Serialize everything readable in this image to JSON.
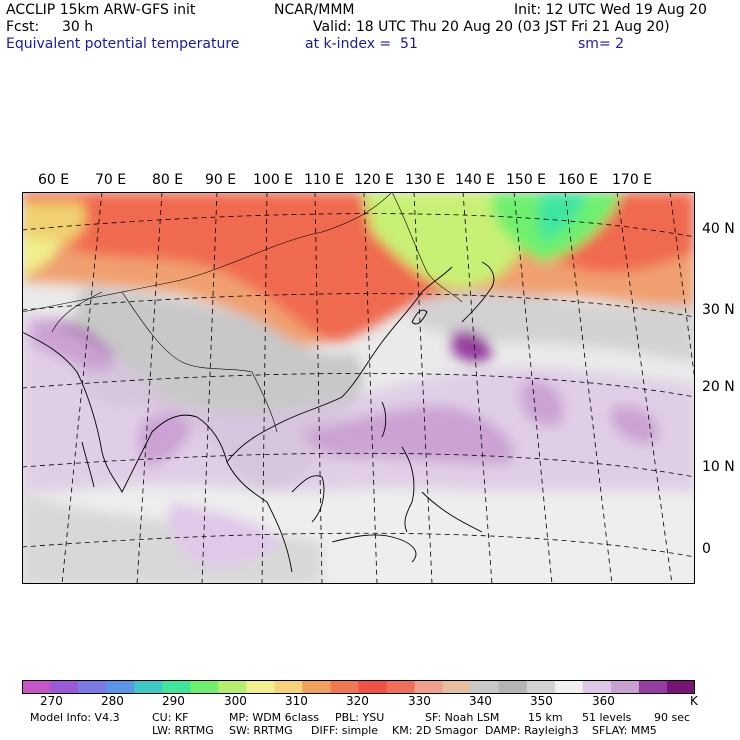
{
  "header": {
    "model": "ACCLIP 15km ARW-GFS init",
    "org": "NCAR/MMM",
    "init": "Init: 12 UTC Wed 19 Aug 20",
    "fcst_label": "Fcst:",
    "fcst_value": "30 h",
    "valid": "Valid: 18 UTC Thu 20 Aug 20 (03 JST Fri 21 Aug 20)",
    "field": "Equivalent potential temperature",
    "level": "at k-index =  51",
    "smooth": "sm= 2"
  },
  "map": {
    "lon_labels": [
      "60 E",
      "70 E",
      "80 E",
      "90 E",
      "100 E",
      "110 E",
      "120 E",
      "130 E",
      "140 E",
      "150 E",
      "160 E",
      "170 E"
    ],
    "lat_labels": [
      "40 N",
      "30 N",
      "20 N",
      "10 N",
      "0"
    ]
  },
  "colorbar": {
    "unit": "K",
    "ticks": [
      "270",
      "280",
      "290",
      "300",
      "310",
      "320",
      "330",
      "340",
      "350",
      "360"
    ],
    "colors": [
      "#c855c8",
      "#9a5ad6",
      "#7b7be6",
      "#5a96e8",
      "#3ec8c8",
      "#3ee69a",
      "#6ef06e",
      "#b4f06e",
      "#f0f08c",
      "#f5d278",
      "#f0a05a",
      "#f07850",
      "#f05046",
      "#f06e5a",
      "#f0a08c",
      "#e6bea0",
      "#c8c8c8",
      "#b4b4b4",
      "#d2d2d2",
      "#f0f0f0",
      "#dcc8e6",
      "#c8a0d2",
      "#963ca0",
      "#781478"
    ]
  },
  "footer": {
    "line1": [
      "Model Info: V4.3",
      "CU: KF",
      "MP: WDM 6class",
      "PBL: YSU",
      "SF: Noah LSM",
      "15 km",
      "51 levels",
      "90 sec"
    ],
    "line2": [
      "LW: RRTMG",
      "SW: RRTMG",
      "DIFF: simple",
      "KM: 2D Smagor",
      "DAMP: Rayleigh3",
      "SFLAY: MM5"
    ]
  }
}
